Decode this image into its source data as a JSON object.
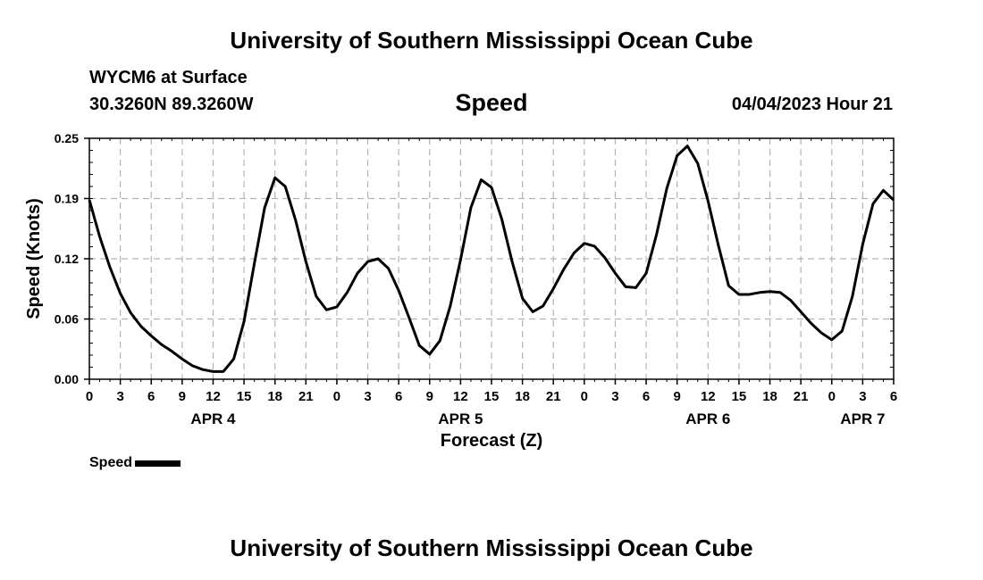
{
  "header": {
    "title": "University of Southern Mississippi Ocean Cube",
    "station": "WYCM6 at Surface",
    "coords": "30.3260N  89.3260W",
    "variable": "Speed",
    "datetime": "04/04/2023 Hour 21"
  },
  "footer": {
    "title": "University of Southern Mississippi Ocean Cube"
  },
  "legend": {
    "label": "Speed"
  },
  "chart_data": {
    "type": "line",
    "title": "Speed",
    "xlabel": "Forecast (Z)",
    "ylabel": "Speed (Knots)",
    "xlim": [
      0,
      78
    ],
    "ylim": [
      0,
      0.25
    ],
    "yticks": [
      0,
      0.0625,
      0.125,
      0.1875,
      0.25
    ],
    "ytick_labels": [
      "0.00",
      "0.06",
      "0.12",
      "0.19",
      "0.25"
    ],
    "xticks": [
      0,
      3,
      6,
      9,
      12,
      15,
      18,
      21,
      24,
      27,
      30,
      33,
      36,
      39,
      42,
      45,
      48,
      51,
      54,
      57,
      60,
      63,
      66,
      69,
      72,
      75,
      78
    ],
    "xtick_labels": [
      "0",
      "3",
      "6",
      "9",
      "12",
      "15",
      "18",
      "21",
      "0",
      "3",
      "6",
      "9",
      "12",
      "15",
      "18",
      "21",
      "0",
      "3",
      "6",
      "9",
      "12",
      "15",
      "18",
      "21",
      "0",
      "3",
      "6"
    ],
    "day_labels": [
      {
        "label": "APR 4",
        "x": 12
      },
      {
        "label": "APR 5",
        "x": 36
      },
      {
        "label": "APR 6",
        "x": 60
      },
      {
        "label": "APR 7",
        "x": 75
      }
    ],
    "grid": true,
    "color": "#000000",
    "series": [
      {
        "name": "Speed",
        "x": [
          0,
          1,
          2,
          3,
          4,
          5,
          6,
          7,
          8,
          9,
          10,
          11,
          12,
          13,
          14,
          15,
          16,
          17,
          18,
          19,
          20,
          21,
          22,
          23,
          24,
          25,
          26,
          27,
          28,
          29,
          30,
          31,
          32,
          33,
          34,
          35,
          36,
          37,
          38,
          39,
          40,
          41,
          42,
          43,
          44,
          45,
          46,
          47,
          48,
          49,
          50,
          51,
          52,
          53,
          54,
          55,
          56,
          57,
          58,
          59,
          60,
          61,
          62,
          63,
          64,
          65,
          66,
          67,
          68,
          69,
          70,
          71,
          72,
          73,
          74,
          75,
          76,
          77,
          78
        ],
        "values": [
          0.186,
          0.148,
          0.116,
          0.089,
          0.069,
          0.055,
          0.045,
          0.036,
          0.029,
          0.021,
          0.014,
          0.01,
          0.008,
          0.008,
          0.021,
          0.06,
          0.12,
          0.178,
          0.209,
          0.2,
          0.165,
          0.122,
          0.086,
          0.072,
          0.075,
          0.09,
          0.11,
          0.122,
          0.125,
          0.115,
          0.092,
          0.064,
          0.035,
          0.026,
          0.04,
          0.076,
          0.124,
          0.178,
          0.207,
          0.199,
          0.166,
          0.122,
          0.084,
          0.07,
          0.076,
          0.094,
          0.114,
          0.131,
          0.141,
          0.138,
          0.126,
          0.11,
          0.096,
          0.095,
          0.11,
          0.15,
          0.198,
          0.232,
          0.242,
          0.224,
          0.185,
          0.139,
          0.097,
          0.088,
          0.088,
          0.09,
          0.091,
          0.09,
          0.082,
          0.07,
          0.058,
          0.048,
          0.041,
          0.05,
          0.086,
          0.14,
          0.182,
          0.196,
          0.186
        ]
      }
    ]
  }
}
